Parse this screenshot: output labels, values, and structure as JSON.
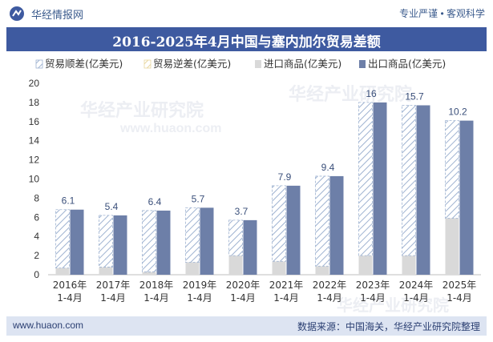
{
  "header": {
    "site_name": "华经情报网",
    "slogan": "专业严谨 • 客观科学"
  },
  "title": "2016-2025年4月中国与塞内加尔贸易差额",
  "footer": {
    "url": "www.huaon.com",
    "source": "数据来源：中国海关，华经产业研究院整理"
  },
  "watermark": {
    "text_cn": "华经产业研究院",
    "text_en": "www.huaon.com"
  },
  "colors": {
    "title_bg": "#3e5aa0",
    "export_bar": "#6d7fa8",
    "import_bar": "#d9d9d9",
    "surplus_hatch": "#9fb3d1",
    "deficit_hatch": "#e8d7a0",
    "label": "#3a4f7a",
    "footer_bg": "#dde4f2"
  },
  "chart_data": {
    "type": "bar",
    "categories": [
      [
        "2016年",
        "1-4月"
      ],
      [
        "2017年",
        "1-4月"
      ],
      [
        "2018年",
        "1-4月"
      ],
      [
        "2019年",
        "1-4月"
      ],
      [
        "2020年",
        "1-4月"
      ],
      [
        "2021年",
        "1-4月"
      ],
      [
        "2022年",
        "1-4月"
      ],
      [
        "2023年",
        "1-4月"
      ],
      [
        "2024年",
        "1-4月"
      ],
      [
        "2025年",
        "1-4月"
      ]
    ],
    "series": [
      {
        "name": "贸易顺差(亿美元)",
        "values": [
          6.1,
          5.4,
          6.4,
          5.7,
          3.7,
          7.9,
          9.4,
          16,
          15.7,
          10.2
        ]
      },
      {
        "name": "贸易逆差(亿美元)",
        "values": [
          0,
          0,
          0,
          0,
          0,
          0,
          0,
          0,
          0,
          0
        ]
      },
      {
        "name": "进口商品(亿美元)",
        "values": [
          0.7,
          0.8,
          0.3,
          1.3,
          2.0,
          1.4,
          0.9,
          2.0,
          2.0,
          5.9
        ]
      },
      {
        "name": "出口商品(亿美元)",
        "values": [
          6.8,
          6.2,
          6.7,
          7.0,
          5.7,
          9.3,
          10.3,
          18.0,
          17.7,
          16.1
        ]
      }
    ],
    "data_labels": [
      "6.1",
      "5.4",
      "6.4",
      "5.7",
      "3.7",
      "7.9",
      "9.4",
      "16",
      "15.7",
      "10.2"
    ],
    "ylim": [
      0,
      20
    ],
    "yticks": [
      0,
      2,
      4,
      6,
      8,
      10,
      12,
      14,
      16,
      18,
      20
    ],
    "legend_position": "top",
    "grid": false
  }
}
